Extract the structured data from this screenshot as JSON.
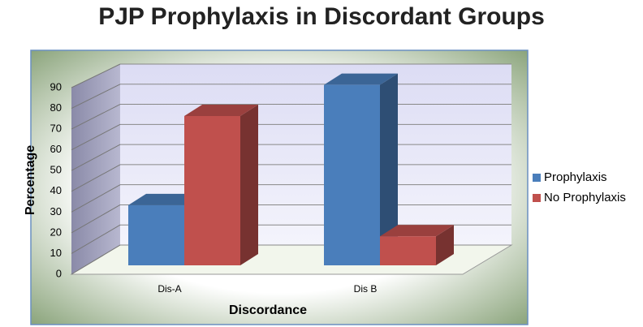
{
  "chart_data": {
    "type": "bar3d",
    "title": "PJP Prophylaxis in Discordant Groups",
    "x_label": "Discordance",
    "y_label": "Percentage",
    "categories": [
      "Dis-A",
      "Dis B"
    ],
    "series": [
      {
        "name": "Prophylaxis",
        "color": "#4a7ebb",
        "values": [
          29,
          87
        ]
      },
      {
        "name": "No Prophylaxis",
        "color": "#c0504d",
        "values": [
          72,
          14
        ]
      }
    ],
    "ylim": [
      0,
      90
    ],
    "yticks": [
      0,
      10,
      20,
      30,
      40,
      50,
      60,
      70,
      80,
      90
    ],
    "grid": true,
    "legend": "right"
  }
}
